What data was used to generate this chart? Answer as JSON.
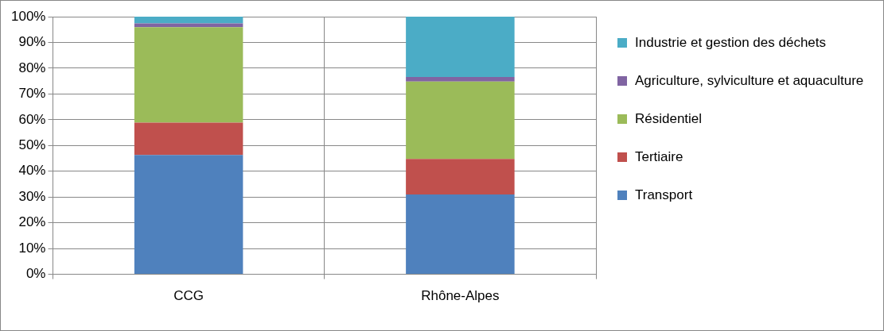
{
  "chart_data": {
    "type": "bar",
    "stacked": true,
    "categories": [
      "CCG",
      "Rhône-Alpes"
    ],
    "series": [
      {
        "name": "Transport",
        "color": "#4f81bd",
        "values": [
          46.3,
          31.0
        ]
      },
      {
        "name": "Tertiaire",
        "color": "#c0504d",
        "values": [
          12.6,
          13.8
        ]
      },
      {
        "name": "Résidentiel",
        "color": "#9bbb59",
        "values": [
          37.0,
          30.0
        ]
      },
      {
        "name": "Agriculture, sylviculture et aquaculture",
        "color": "#8064a2",
        "values": [
          1.5,
          1.8
        ]
      },
      {
        "name": "Industrie et gestion des déchets",
        "color": "#4bacc6",
        "values": [
          2.6,
          23.4
        ]
      }
    ],
    "ylim": [
      0,
      100
    ],
    "yticks": [
      {
        "value": 0,
        "label": "0%"
      },
      {
        "value": 10,
        "label": "10%"
      },
      {
        "value": 20,
        "label": "20%"
      },
      {
        "value": 30,
        "label": "30%"
      },
      {
        "value": 40,
        "label": "40%"
      },
      {
        "value": 50,
        "label": "50%"
      },
      {
        "value": 60,
        "label": "60%"
      },
      {
        "value": 70,
        "label": "70%"
      },
      {
        "value": 80,
        "label": "80%"
      },
      {
        "value": 90,
        "label": "90%"
      },
      {
        "value": 100,
        "label": "100%"
      }
    ],
    "grid": true,
    "legend": "right"
  }
}
